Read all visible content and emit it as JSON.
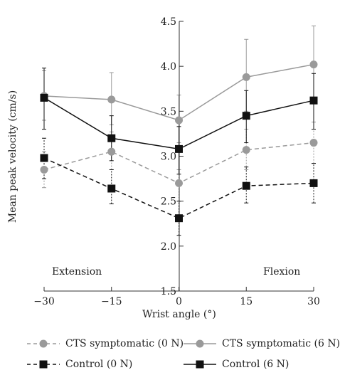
{
  "chart_data": {
    "type": "line",
    "title": "",
    "xlabel": "Wrist angle (°)",
    "ylabel": "Mean peak velocity (cm/s)",
    "x": [
      -30,
      -15,
      0,
      15,
      30
    ],
    "x_ticks": [
      "−30",
      "−15",
      "0",
      "15",
      "30"
    ],
    "y_ticks": [
      "1.5",
      "2.0",
      "2.5",
      "3.0",
      "3.5",
      "4.0",
      "4.5"
    ],
    "xlim": [
      -30,
      30
    ],
    "ylim": [
      1.5,
      4.5
    ],
    "grid": false,
    "legend_placement": "bottom",
    "annotations": [
      "Extension",
      "Flexion"
    ],
    "series": [
      {
        "name": "CTS symptomatic (0 N)",
        "marker": "circle",
        "line": "dashed",
        "color": "#9a9a9a",
        "values": [
          2.85,
          3.05,
          2.7,
          3.07,
          3.15
        ],
        "error_lo": [
          2.65,
          2.85,
          2.5,
          2.85,
          2.92
        ],
        "error_hi": [
          3.05,
          3.27,
          2.85,
          3.3,
          3.38
        ]
      },
      {
        "name": "CTS symptomatic (6 N)",
        "marker": "circle",
        "line": "solid",
        "color": "#9a9a9a",
        "values": [
          3.67,
          3.63,
          3.4,
          3.88,
          4.02
        ],
        "error_lo": [
          3.4,
          3.35,
          3.15,
          3.5,
          3.6
        ],
        "error_hi": [
          3.95,
          3.93,
          3.68,
          4.3,
          4.45
        ]
      },
      {
        "name": "Control (0 N)",
        "marker": "square",
        "line": "dashed",
        "color": "#111111",
        "values": [
          2.98,
          2.64,
          2.31,
          2.67,
          2.7
        ],
        "error_lo": [
          2.75,
          2.47,
          2.12,
          2.48,
          2.48
        ],
        "error_hi": [
          3.2,
          2.85,
          2.5,
          2.88,
          2.92
        ]
      },
      {
        "name": "Control (6 N)",
        "marker": "square",
        "line": "solid",
        "color": "#111111",
        "values": [
          3.65,
          3.2,
          3.08,
          3.45,
          3.62
        ],
        "error_lo": [
          3.3,
          2.95,
          2.8,
          3.15,
          3.3
        ],
        "error_hi": [
          3.98,
          3.45,
          3.33,
          3.73,
          3.92
        ]
      }
    ]
  }
}
